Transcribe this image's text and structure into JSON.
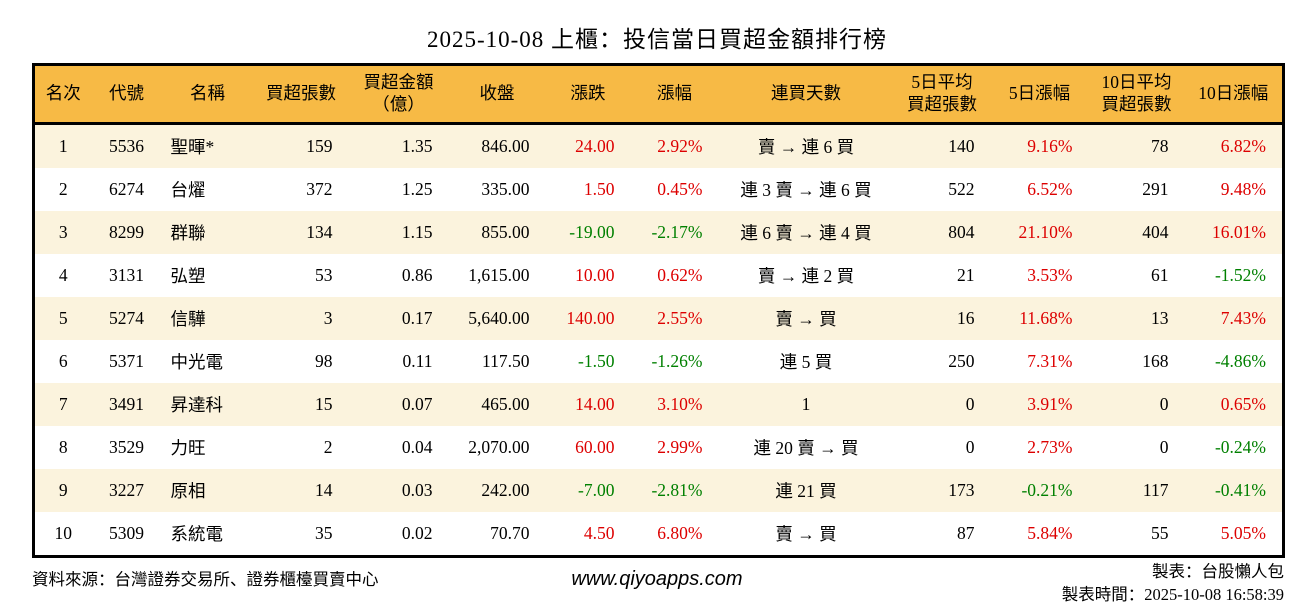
{
  "page": {
    "title": "2025-10-08 上櫃：投信當日買超金額排行榜"
  },
  "chart_data": {
    "type": "table",
    "title": "2025-10-08 上櫃：投信當日買超金額排行榜",
    "columns": [
      "名次",
      "代號",
      "名稱",
      "買超張數",
      "買超金額\n（億）",
      "收盤",
      "漲跌",
      "漲幅",
      "連買天數",
      "5日平均\n買超張數",
      "5日漲幅",
      "10日平均\n買超張數",
      "10日漲幅"
    ],
    "rows": [
      [
        "1",
        "5536",
        "聖暉*",
        "159",
        "1.35",
        "846.00",
        "24.00",
        "2.92%",
        "賣 → 連 6 買",
        "140",
        "9.16%",
        "78",
        "6.82%"
      ],
      [
        "2",
        "6274",
        "台燿",
        "372",
        "1.25",
        "335.00",
        "1.50",
        "0.45%",
        "連 3 賣 → 連 6 買",
        "522",
        "6.52%",
        "291",
        "9.48%"
      ],
      [
        "3",
        "8299",
        "群聯",
        "134",
        "1.15",
        "855.00",
        "-19.00",
        "-2.17%",
        "連 6 賣 → 連 4 買",
        "804",
        "21.10%",
        "404",
        "16.01%"
      ],
      [
        "4",
        "3131",
        "弘塑",
        "53",
        "0.86",
        "1,615.00",
        "10.00",
        "0.62%",
        "賣 → 連 2 買",
        "21",
        "3.53%",
        "61",
        "-1.52%"
      ],
      [
        "5",
        "5274",
        "信驊",
        "3",
        "0.17",
        "5,640.00",
        "140.00",
        "2.55%",
        "賣 → 買",
        "16",
        "11.68%",
        "13",
        "7.43%"
      ],
      [
        "6",
        "5371",
        "中光電",
        "98",
        "0.11",
        "117.50",
        "-1.50",
        "-1.26%",
        "連 5 買",
        "250",
        "7.31%",
        "168",
        "-4.86%"
      ],
      [
        "7",
        "3491",
        "昇達科",
        "15",
        "0.07",
        "465.00",
        "14.00",
        "3.10%",
        "1",
        "0",
        "3.91%",
        "0",
        "0.65%"
      ],
      [
        "8",
        "3529",
        "力旺",
        "2",
        "0.04",
        "2,070.00",
        "60.00",
        "2.99%",
        "連 20 賣 → 買",
        "0",
        "2.73%",
        "0",
        "-0.24%"
      ],
      [
        "9",
        "3227",
        "原相",
        "14",
        "0.03",
        "242.00",
        "-7.00",
        "-2.81%",
        "連 21 買",
        "173",
        "-0.21%",
        "117",
        "-0.41%"
      ],
      [
        "10",
        "5309",
        "系統電",
        "35",
        "0.02",
        "70.70",
        "4.50",
        "6.80%",
        "賣 → 買",
        "87",
        "5.84%",
        "55",
        "5.05%"
      ]
    ],
    "legend_note": "red = up, green = down",
    "colors": {
      "header_bg": "#F7BA45",
      "row_alt_bg": "#FBF3DD",
      "up": "#DD0000",
      "down": "#008000"
    }
  },
  "footer": {
    "source": "資料來源：台灣證券交易所、證券櫃檯買賣中心",
    "website": "www.qiyoapps.com",
    "maker": "製表：台股懶人包",
    "made_at": "製表時間：2025-10-08 16:58:39"
  }
}
